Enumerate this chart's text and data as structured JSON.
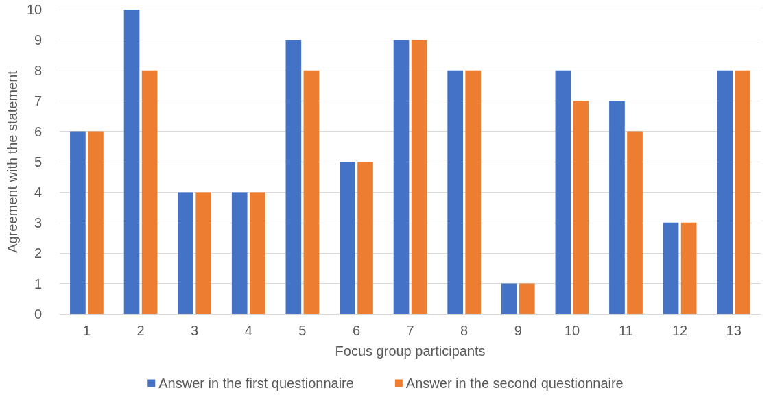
{
  "chart_data": {
    "type": "bar",
    "xlabel": "Focus group participants",
    "ylabel": "Agreement with the statement",
    "categories": [
      "1",
      "2",
      "3",
      "4",
      "5",
      "6",
      "7",
      "8",
      "9",
      "10",
      "11",
      "12",
      "13"
    ],
    "series": [
      {
        "name": "Answer in the first questionnaire",
        "color": "#4472c4",
        "values": [
          6,
          10,
          4,
          4,
          9,
          5,
          9,
          8,
          1,
          8,
          7,
          3,
          8
        ]
      },
      {
        "name": "Answer in the second questionnaire",
        "color": "#ed7d31",
        "values": [
          6,
          8,
          4,
          4,
          8,
          5,
          9,
          8,
          1,
          7,
          6,
          3,
          8
        ]
      }
    ],
    "ylim": [
      0,
      10
    ],
    "yticks": [
      0,
      1,
      2,
      3,
      4,
      5,
      6,
      7,
      8,
      9,
      10
    ],
    "grid": "y",
    "legend": "bottom"
  }
}
